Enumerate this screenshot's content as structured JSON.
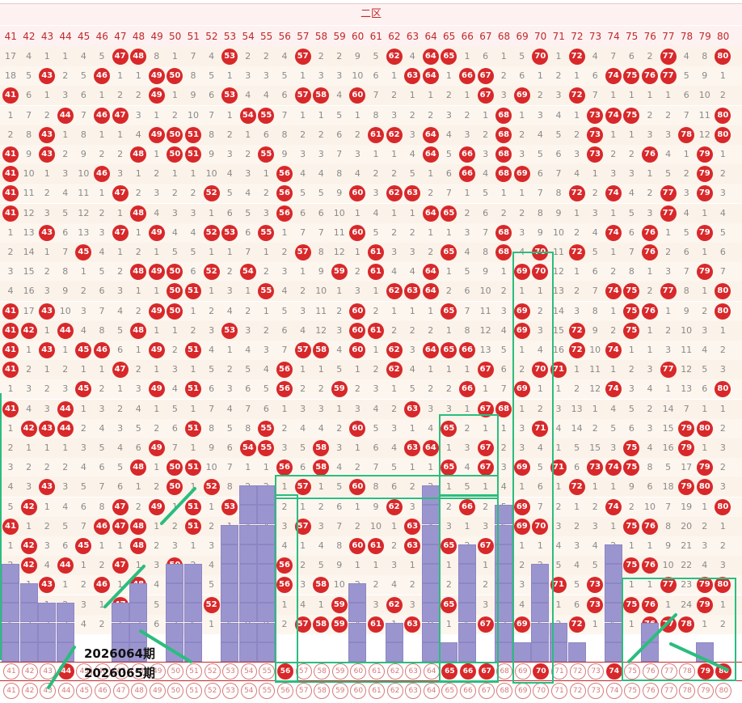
{
  "title": "二区",
  "columns": [
    41,
    42,
    43,
    44,
    45,
    46,
    47,
    48,
    49,
    50,
    51,
    52,
    53,
    54,
    55,
    56,
    57,
    58,
    59,
    60,
    61,
    62,
    63,
    64,
    65,
    66,
    67,
    68,
    69,
    70,
    71,
    72,
    73,
    74,
    75,
    76,
    77,
    78,
    79,
    80
  ],
  "rows": [
    [
      17,
      4,
      1,
      1,
      4,
      5,
      "47",
      "48",
      8,
      1,
      7,
      4,
      "53",
      2,
      2,
      4,
      "57",
      2,
      2,
      9,
      5,
      "62",
      4,
      "64",
      "65",
      1,
      6,
      1,
      5,
      "70",
      1,
      "72",
      4,
      7,
      6,
      2,
      "77",
      4,
      8,
      "80"
    ],
    [
      18,
      5,
      "43",
      2,
      5,
      "46",
      1,
      1,
      "49",
      "50",
      8,
      5,
      1,
      3,
      3,
      5,
      1,
      3,
      3,
      10,
      6,
      1,
      "63",
      "64",
      1,
      "66",
      "67",
      2,
      6,
      1,
      2,
      1,
      6,
      "74",
      "75",
      "76",
      "77",
      5,
      9,
      1
    ],
    [
      "41",
      6,
      1,
      3,
      6,
      1,
      2,
      2,
      "49",
      1,
      9,
      6,
      "53",
      4,
      4,
      6,
      "57",
      "58",
      4,
      "60",
      7,
      2,
      1,
      1,
      2,
      1,
      "67",
      3,
      "69",
      2,
      3,
      "72",
      7,
      1,
      1,
      1,
      1,
      6,
      10,
      2
    ],
    [
      1,
      7,
      2,
      "44",
      7,
      "46",
      "47",
      3,
      1,
      2,
      10,
      7,
      1,
      "54",
      "55",
      7,
      1,
      1,
      5,
      1,
      8,
      3,
      2,
      2,
      3,
      2,
      1,
      "68",
      1,
      3,
      4,
      1,
      "73",
      "74",
      "75",
      2,
      2,
      7,
      11,
      "80"
    ],
    [
      2,
      8,
      "43",
      1,
      8,
      1,
      1,
      4,
      "49",
      "50",
      "51",
      8,
      2,
      1,
      6,
      8,
      2,
      2,
      6,
      2,
      "61",
      "62",
      3,
      "64",
      4,
      3,
      2,
      "68",
      2,
      4,
      5,
      2,
      "73",
      1,
      1,
      3,
      3,
      "78",
      12,
      "80"
    ],
    [
      "41",
      9,
      "43",
      2,
      9,
      2,
      2,
      "48",
      1,
      "50",
      "51",
      9,
      3,
      2,
      "55",
      9,
      3,
      3,
      7,
      3,
      1,
      1,
      4,
      "64",
      5,
      "66",
      3,
      "68",
      3,
      5,
      6,
      3,
      "73",
      2,
      2,
      "76",
      4,
      1,
      "79",
      1
    ],
    [
      "41",
      10,
      1,
      3,
      10,
      "46",
      3,
      1,
      2,
      1,
      1,
      10,
      4,
      3,
      1,
      "56",
      4,
      4,
      8,
      4,
      2,
      2,
      5,
      1,
      6,
      "66",
      4,
      "68",
      "69",
      6,
      7,
      4,
      1,
      3,
      3,
      1,
      5,
      2,
      "79",
      2
    ],
    [
      "41",
      11,
      2,
      4,
      11,
      1,
      "47",
      2,
      3,
      2,
      2,
      "52",
      5,
      4,
      2,
      "56",
      5,
      5,
      9,
      "60",
      3,
      "62",
      "63",
      2,
      7,
      1,
      5,
      1,
      1,
      7,
      8,
      "72",
      2,
      "74",
      4,
      2,
      "77",
      3,
      "79",
      3
    ],
    [
      "41",
      12,
      3,
      5,
      12,
      2,
      1,
      "48",
      4,
      3,
      3,
      1,
      6,
      5,
      3,
      "56",
      6,
      6,
      10,
      1,
      4,
      1,
      1,
      "64",
      "65",
      2,
      6,
      2,
      2,
      8,
      9,
      1,
      3,
      1,
      5,
      3,
      "77",
      4,
      1,
      4
    ],
    [
      1,
      13,
      "43",
      6,
      13,
      3,
      "47",
      1,
      "49",
      4,
      4,
      "52",
      "53",
      6,
      "55",
      1,
      7,
      7,
      11,
      "60",
      5,
      2,
      2,
      1,
      1,
      3,
      7,
      "68",
      3,
      9,
      10,
      2,
      4,
      "74",
      6,
      "76",
      1,
      5,
      "79",
      5
    ],
    [
      2,
      14,
      1,
      7,
      "45",
      4,
      1,
      2,
      1,
      5,
      5,
      1,
      1,
      7,
      1,
      2,
      "57",
      8,
      12,
      1,
      "61",
      3,
      3,
      2,
      "65",
      4,
      8,
      "68",
      4,
      "70",
      11,
      "72",
      5,
      1,
      7,
      "76",
      2,
      6,
      1,
      6
    ],
    [
      3,
      15,
      2,
      8,
      1,
      5,
      2,
      "48",
      "49",
      "50",
      6,
      "52",
      2,
      "54",
      2,
      3,
      1,
      9,
      "59",
      2,
      "61",
      4,
      4,
      "64",
      1,
      5,
      9,
      1,
      "69",
      "70",
      12,
      1,
      6,
      2,
      8,
      1,
      3,
      7,
      "79",
      7
    ],
    [
      4,
      16,
      3,
      9,
      2,
      6,
      3,
      1,
      1,
      "50",
      "51",
      1,
      3,
      1,
      "55",
      4,
      2,
      10,
      1,
      3,
      1,
      "62",
      "63",
      "64",
      2,
      6,
      10,
      2,
      1,
      1,
      13,
      2,
      7,
      "74",
      "75",
      2,
      "77",
      8,
      1,
      "80"
    ],
    [
      "41",
      17,
      "43",
      10,
      3,
      7,
      4,
      2,
      "49",
      "50",
      1,
      2,
      4,
      2,
      1,
      5,
      3,
      11,
      2,
      "60",
      2,
      1,
      1,
      1,
      "65",
      7,
      11,
      3,
      "69",
      2,
      14,
      3,
      8,
      1,
      "75",
      "76",
      1,
      9,
      2,
      "80"
    ],
    [
      "41",
      "42",
      1,
      "44",
      4,
      8,
      5,
      "48",
      1,
      1,
      2,
      3,
      "53",
      3,
      2,
      6,
      4,
      12,
      3,
      "60",
      "61",
      2,
      2,
      2,
      1,
      8,
      12,
      4,
      "69",
      3,
      15,
      "72",
      9,
      2,
      "75",
      1,
      2,
      10,
      3,
      1
    ],
    [
      "41",
      1,
      "43",
      1,
      "45",
      "46",
      6,
      1,
      "49",
      2,
      "51",
      4,
      1,
      4,
      3,
      7,
      "57",
      "58",
      4,
      "60",
      1,
      "62",
      3,
      "64",
      "65",
      "66",
      13,
      5,
      1,
      4,
      16,
      "72",
      10,
      "74",
      1,
      1,
      3,
      11,
      4,
      2
    ],
    [
      "41",
      2,
      1,
      2,
      1,
      1,
      "47",
      2,
      1,
      3,
      1,
      5,
      2,
      5,
      4,
      "56",
      1,
      1,
      5,
      1,
      2,
      "62",
      4,
      1,
      1,
      1,
      "67",
      6,
      2,
      "70",
      "71",
      1,
      11,
      1,
      2,
      3,
      "77",
      12,
      5,
      3
    ],
    [
      1,
      3,
      2,
      3,
      "45",
      2,
      1,
      3,
      "49",
      4,
      "51",
      6,
      3,
      6,
      5,
      "56",
      2,
      2,
      "59",
      2,
      3,
      1,
      5,
      2,
      2,
      "66",
      1,
      7,
      "69",
      1,
      1,
      2,
      12,
      "74",
      3,
      4,
      1,
      13,
      6,
      "80"
    ],
    [
      "41",
      4,
      3,
      "44",
      1,
      3,
      2,
      4,
      1,
      5,
      1,
      7,
      4,
      7,
      6,
      1,
      3,
      3,
      1,
      3,
      4,
      2,
      "63",
      3,
      3,
      1,
      "67",
      "68",
      1,
      2,
      3,
      13,
      1,
      4,
      5,
      2,
      14,
      7,
      1,
      1
    ],
    [
      1,
      "42",
      "43",
      "44",
      2,
      4,
      3,
      5,
      2,
      6,
      "51",
      8,
      5,
      8,
      "55",
      2,
      4,
      4,
      2,
      "60",
      5,
      3,
      1,
      4,
      "65",
      2,
      1,
      1,
      3,
      "71",
      4,
      14,
      2,
      5,
      6,
      3,
      15,
      "79",
      "80",
      2
    ],
    [
      2,
      1,
      1,
      1,
      3,
      5,
      4,
      6,
      "49",
      7,
      1,
      9,
      6,
      "54",
      "55",
      3,
      5,
      "58",
      3,
      1,
      6,
      4,
      "63",
      "64",
      1,
      3,
      "67",
      2,
      3,
      4,
      1,
      5,
      15,
      3,
      "75",
      4,
      16,
      "79",
      1,
      3
    ],
    [
      3,
      2,
      2,
      2,
      4,
      6,
      5,
      "48",
      1,
      "50",
      "51",
      10,
      7,
      1,
      1,
      "56",
      6,
      "58",
      4,
      2,
      7,
      5,
      1,
      1,
      "65",
      4,
      "67",
      3,
      "69",
      5,
      "71",
      6,
      "73",
      "74",
      "75",
      8,
      5,
      17,
      "79",
      2
    ],
    [
      4,
      3,
      "43",
      3,
      5,
      7,
      6,
      1,
      2,
      "50",
      1,
      "52",
      8,
      2,
      2,
      1,
      "57",
      1,
      5,
      "60",
      8,
      6,
      2,
      2,
      1,
      5,
      1,
      4,
      1,
      6,
      1,
      "72",
      1,
      1,
      9,
      6,
      18,
      "79",
      "80",
      3
    ],
    [
      5,
      "42",
      1,
      4,
      6,
      8,
      "47",
      2,
      "49",
      1,
      "51",
      1,
      "53",
      3,
      3,
      2,
      1,
      2,
      6,
      1,
      9,
      "62",
      3,
      3,
      2,
      "66",
      2,
      5,
      "69",
      7,
      2,
      1,
      2,
      "74",
      2,
      10,
      7,
      19,
      1,
      "80"
    ],
    [
      "41",
      1,
      2,
      5,
      7,
      "46",
      "47",
      "48",
      1,
      2,
      "51",
      2,
      1,
      4,
      4,
      3,
      "57",
      3,
      7,
      2,
      10,
      1,
      "63",
      4,
      3,
      1,
      3,
      6,
      "69",
      "70",
      3,
      2,
      3,
      1,
      "75",
      "76",
      8,
      20,
      2,
      1
    ],
    [
      1,
      "42",
      3,
      6,
      "45",
      1,
      1,
      "48",
      2,
      3,
      1,
      3,
      2,
      5,
      5,
      4,
      1,
      4,
      8,
      "60",
      "61",
      2,
      "63",
      5,
      "65",
      2,
      "67",
      7,
      1,
      1,
      4,
      3,
      4,
      2,
      1,
      1,
      9,
      21,
      3,
      2
    ],
    [
      2,
      "42",
      4,
      "44",
      1,
      2,
      "47",
      1,
      3,
      "50",
      2,
      4,
      3,
      6,
      6,
      "56",
      2,
      5,
      9,
      1,
      1,
      3,
      1,
      6,
      1,
      3,
      1,
      8,
      2,
      2,
      5,
      4,
      5,
      3,
      "75",
      "76",
      10,
      22,
      4,
      3
    ],
    [
      3,
      1,
      "43",
      1,
      2,
      "46",
      1,
      "48",
      4,
      1,
      3,
      5,
      4,
      7,
      7,
      "56",
      3,
      "58",
      10,
      2,
      2,
      4,
      2,
      7,
      2,
      4,
      2,
      "68",
      3,
      3,
      "71",
      5,
      "73",
      4,
      1,
      1,
      "77",
      23,
      "79",
      "80"
    ],
    [
      4,
      2,
      1,
      2,
      3,
      1,
      "47",
      1,
      5,
      2,
      4,
      "52",
      5,
      8,
      8,
      1,
      4,
      1,
      "59",
      3,
      3,
      "62",
      3,
      8,
      "65",
      5,
      3,
      1,
      4,
      4,
      1,
      6,
      "73",
      5,
      "75",
      "76",
      1,
      24,
      "79",
      1
    ],
    [
      5,
      3,
      2,
      3,
      4,
      2,
      1,
      2,
      6,
      3,
      5,
      1,
      6,
      9,
      9,
      2,
      "57",
      "58",
      "59",
      4,
      "61",
      1,
      "63",
      9,
      1,
      6,
      "67",
      2,
      "69",
      5,
      2,
      "72",
      1,
      6,
      1,
      "76",
      "77",
      "78",
      1,
      2
    ]
  ],
  "current_row": [
    "41",
    "42",
    "43",
    "44",
    "45",
    "46",
    "47",
    "48",
    "49",
    "50",
    "51",
    "52",
    "53",
    "54",
    "55",
    "56",
    "57",
    "58",
    "59",
    "60",
    "61",
    "62",
    "63",
    "64",
    "65",
    "66",
    "67",
    "68",
    "69",
    "70",
    "71",
    "72",
    "73",
    "74",
    "75",
    "76",
    "77",
    "78",
    "79",
    "80"
  ],
  "current_hits": [
    "44",
    "56",
    "65",
    "66",
    "67",
    "70",
    "74",
    "79",
    "80"
  ],
  "next_row": [
    "41",
    "42",
    "43",
    "44",
    "45",
    "46",
    "47",
    "48",
    "49",
    "50",
    "51",
    "52",
    "53",
    "54",
    "55",
    "56",
    "57",
    "58",
    "59",
    "60",
    "61",
    "62",
    "63",
    "64",
    "65",
    "66",
    "67",
    "68",
    "69",
    "70",
    "71",
    "72",
    "73",
    "74",
    "75",
    "76",
    "77",
    "78",
    "79",
    "80"
  ],
  "label_period_1": "2026064期",
  "label_period_2": "2026065期",
  "colors": {
    "red": "#d8282a",
    "bar": "#9b95cf",
    "box": "#2bbd7e"
  }
}
